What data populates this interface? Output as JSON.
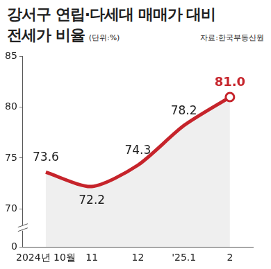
{
  "chart_data": {
    "type": "line",
    "title": [
      "강서구 연립·다세대 매매가 대비",
      "전세가 비율"
    ],
    "subtitle": "(단위:%)",
    "source": "자료:한국부동산원",
    "categories": [
      "2024년 10월",
      "11",
      "12",
      "'25.1",
      "2"
    ],
    "values": [
      73.6,
      72.2,
      74.3,
      78.2,
      81.0
    ],
    "value_labels": [
      "73.6",
      "72.2",
      "74.3",
      "78.2",
      "81.0"
    ],
    "color": "#c6242b",
    "ylim": [
      0,
      85
    ],
    "yticks": [
      0,
      70,
      75,
      80,
      85
    ],
    "grid": false,
    "data_labels": true
  }
}
